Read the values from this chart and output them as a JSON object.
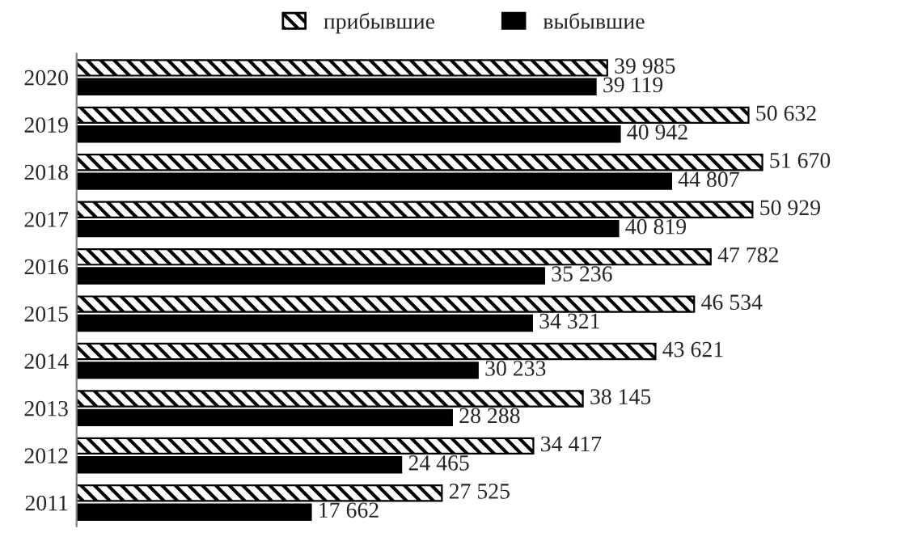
{
  "chart_data": {
    "type": "bar",
    "orientation": "horizontal",
    "legend": "top",
    "categories": [
      "2020",
      "2019",
      "2018",
      "2017",
      "2016",
      "2015",
      "2014",
      "2013",
      "2012",
      "2011"
    ],
    "series": [
      {
        "name": "прибывшие",
        "color": "#000000",
        "values": [
          39985,
          50632,
          51670,
          50929,
          47782,
          46534,
          43621,
          38145,
          34417,
          27525
        ],
        "value_labels": [
          "39 985",
          "50 632",
          "51 670",
          "50 929",
          "47 782",
          "46 534",
          "43 621",
          "38 145",
          "34 417",
          "27 525"
        ]
      },
      {
        "name": "выбывшие",
        "color": "#000000",
        "values": [
          39119,
          40942,
          44807,
          40819,
          35236,
          34321,
          30233,
          28288,
          24465,
          17662
        ],
        "value_labels": [
          "39 119",
          "40 942",
          "44 807",
          "40 819",
          "35 236",
          "34 321",
          "30 233",
          "28 288",
          "24 465",
          "17 662"
        ]
      }
    ]
  }
}
